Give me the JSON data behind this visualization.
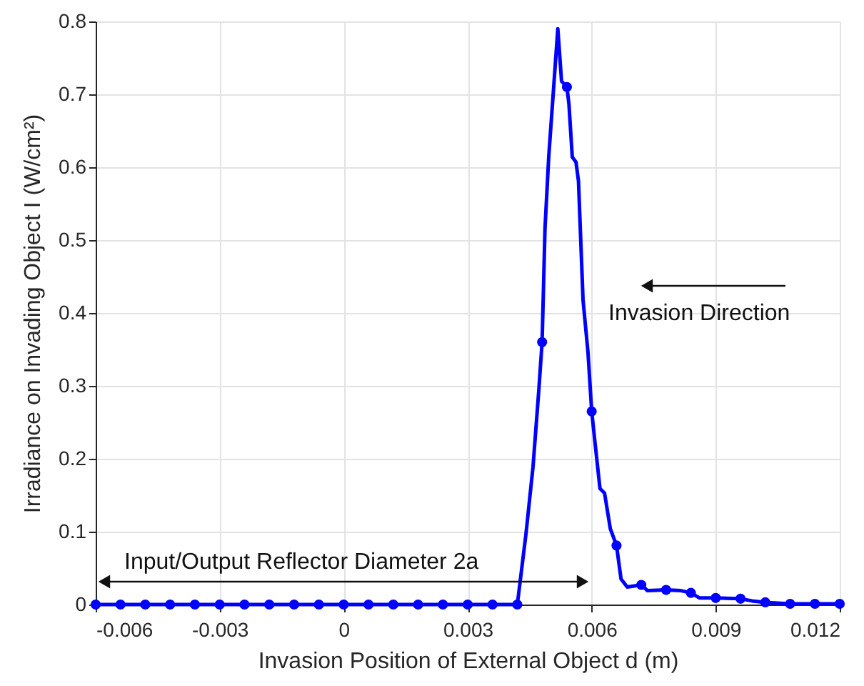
{
  "chart_data": {
    "type": "line",
    "xlabel": "Invasion Position of External Object d (m)",
    "ylabel": "Irradiance on Invading Object I (W/cm²)",
    "xlim": [
      -0.006,
      0.012
    ],
    "xticks": [
      -0.006,
      -0.003,
      0,
      0.003,
      0.006,
      0.009,
      0.012
    ],
    "ylim": [
      0,
      0.8
    ],
    "yticks": [
      0,
      0.1,
      0.2,
      0.3,
      0.4,
      0.5,
      0.6,
      0.7,
      0.8
    ],
    "grid": true,
    "annotations": [
      "Invasion Direction",
      "Input/Output Reflector Diameter 2a"
    ],
    "series": [
      {
        "color": "#0000ff",
        "marker": "none",
        "line_style": "solid",
        "x": [
          -0.006,
          0.0042,
          0.00441,
          0.00458,
          0.00472,
          0.0048,
          0.00487,
          0.00496,
          0.00518,
          0.00527,
          0.0054,
          0.00545,
          0.00553,
          0.00562,
          0.00568,
          0.00579,
          0.00591,
          0.006,
          0.00608,
          0.0062,
          0.00631,
          0.00645,
          0.0066,
          0.00671,
          0.00686,
          0.0072,
          0.00735,
          0.0078,
          0.00816,
          0.0084,
          0.00861,
          0.009,
          0.0096,
          0.00988,
          0.0102,
          0.0108,
          0.0114,
          0.012
        ],
        "values": [
          0,
          0,
          0.097,
          0.189,
          0.294,
          0.36,
          0.516,
          0.614,
          0.79,
          0.718,
          0.71,
          0.686,
          0.614,
          0.607,
          0.581,
          0.418,
          0.346,
          0.265,
          0.222,
          0.159,
          0.153,
          0.104,
          0.081,
          0.035,
          0.024,
          0.027,
          0.019,
          0.02,
          0.019,
          0.016,
          0.009,
          0.009,
          0.008,
          0.005,
          0.003,
          0.001,
          0.001,
          0.001
        ]
      },
      {
        "type": "scatter",
        "color": "#0000ff",
        "marker": "circle",
        "x": [
          -0.006,
          -0.0054,
          -0.0048,
          -0.0042,
          -0.0036,
          -0.003,
          -0.0024,
          -0.0018,
          -0.0012,
          -0.0006,
          0,
          0.0006,
          0.0012,
          0.0018,
          0.0024,
          0.003,
          0.0036,
          0.0042,
          0.0048,
          0.0054,
          0.006,
          0.0066,
          0.0072,
          0.0078,
          0.0084,
          0.009,
          0.0096,
          0.0102,
          0.0108,
          0.0114,
          0.012
        ],
        "values": [
          0,
          0,
          0,
          0,
          0,
          0,
          0,
          0,
          0,
          0,
          0,
          0,
          0,
          0,
          0,
          0,
          0,
          0,
          0.36,
          0.71,
          0.265,
          0.081,
          0.027,
          0.02,
          0.016,
          0.009,
          0.008,
          0.003,
          0.001,
          0.001,
          0.001
        ]
      }
    ]
  }
}
